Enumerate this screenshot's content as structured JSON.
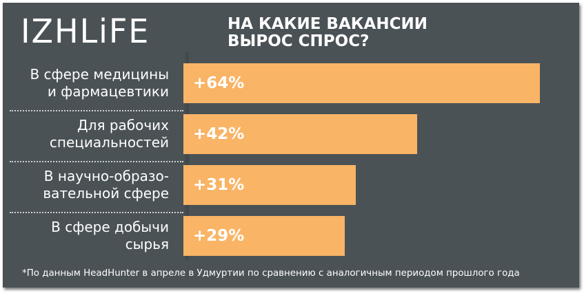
{
  "brand": {
    "logo_text": "IZHLiFE"
  },
  "headline": {
    "line1": "НА КАКИЕ ВАКАНСИИ",
    "line2": "ВЫРОС СПРОС?"
  },
  "colors": {
    "background": "#4a5256",
    "bar": "#f9b466",
    "text": "#ffffff"
  },
  "chart_data": {
    "type": "bar",
    "orientation": "horizontal",
    "title": "НА КАКИЕ ВАКАНСИИ ВЫРОС СПРОС?",
    "categories": [
      [
        "В сфере медицины",
        "и фармацевтики"
      ],
      [
        "Для рабочих",
        "специальностей"
      ],
      [
        "В научно-образо-",
        "вательной сфере"
      ],
      [
        "В сфере добычи",
        "сырья"
      ]
    ],
    "values": [
      64,
      42,
      31,
      29
    ],
    "value_labels": [
      "+64%",
      "+42%",
      "+31%",
      "+29%"
    ],
    "unit": "%",
    "xlim": [
      0,
      70
    ],
    "grid": false,
    "legend": "none"
  },
  "footnote": "*По данным HeadHunter в апреле в Удмуртии по сравнению с аналогичным периодом прошлого года"
}
